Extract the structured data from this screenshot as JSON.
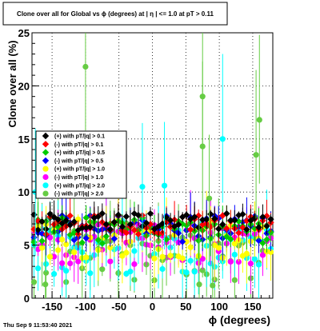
{
  "chart_data": {
    "type": "scatter",
    "title": "Clone  over all for Global vs ϕ (degrees) at |  η | <= 1.0 at pT > 0.11",
    "xlabel": "ϕ (degrees)",
    "ylabel": "Clone  over all (%)",
    "xlim": [
      -180,
      180
    ],
    "ylim": [
      0,
      25
    ],
    "x_ticks": [
      -150,
      -100,
      -50,
      0,
      50,
      100,
      150
    ],
    "y_ticks": [
      0,
      5,
      10,
      15,
      20,
      25
    ],
    "grid": true,
    "legend_position": "left-middle",
    "series": [
      {
        "name": "(+) with pT/|q| > 0.1",
        "color": "#000000",
        "marker": "diamond",
        "level": 7.2,
        "spread": 0.5
      },
      {
        "name": "(-) with pT/|q| > 0.1",
        "color": "#ff0000",
        "marker": "diamond",
        "level": 6.9,
        "spread": 0.6
      },
      {
        "name": "(+) with pT/|q| > 0.5",
        "color": "#00cc00",
        "marker": "diamond",
        "level": 6.4,
        "spread": 0.8
      },
      {
        "name": "(-) with pT/|q| > 0.5",
        "color": "#0000ff",
        "marker": "diamond",
        "level": 6.6,
        "spread": 0.8
      },
      {
        "name": "(+) with pT/|q| > 1.0",
        "color": "#ffff00",
        "marker": "circle",
        "level": 5.6,
        "spread": 1.2
      },
      {
        "name": "(-) with pT/|q| > 1.0",
        "color": "#ff00ff",
        "marker": "circle",
        "level": 5.2,
        "spread": 1.3
      },
      {
        "name": "(+) with pT/|q| > 2.0",
        "color": "#00ffff",
        "marker": "circle",
        "level": 4.8,
        "spread": 1.6
      },
      {
        "name": "(-) with pT/|q| > 2.0",
        "color": "#66cc44",
        "marker": "circle",
        "level": 4.4,
        "spread": 1.8
      }
    ],
    "outliers": [
      {
        "series": 7,
        "x": -100,
        "y": 21.8
      },
      {
        "series": 7,
        "x": 75,
        "y": 19.0
      },
      {
        "series": 7,
        "x": 160,
        "y": 16.8
      },
      {
        "series": 6,
        "x": 105,
        "y": 15.0
      },
      {
        "series": 7,
        "x": 75,
        "y": 14.3
      },
      {
        "series": 7,
        "x": 155,
        "y": 13.5
      },
      {
        "series": 6,
        "x": -175,
        "y": 10.0
      },
      {
        "series": 6,
        "x": -15,
        "y": 10.5
      },
      {
        "series": 6,
        "x": 18,
        "y": 10.6
      },
      {
        "series": 7,
        "x": 85,
        "y": 9.4
      },
      {
        "series": 7,
        "x": -160,
        "y": 1.3
      },
      {
        "series": 7,
        "x": 70,
        "y": 1.3
      },
      {
        "series": 7,
        "x": 90,
        "y": 1.2
      }
    ]
  },
  "footer": {
    "date": "Thu Sep  9 11:53:40 2021"
  }
}
